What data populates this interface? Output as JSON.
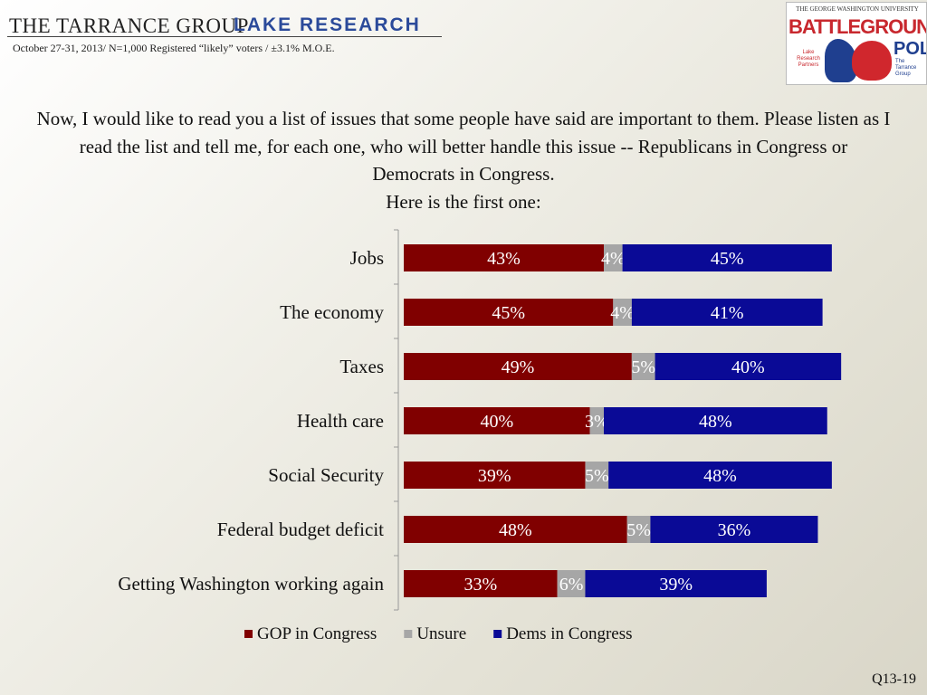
{
  "header": {
    "tarrance": "THE TARRANCE GROUP",
    "lake": "LAKE RESEARCH",
    "survey_info": "October 27-31, 2013/ N=1,000 Registered “likely” voters / ±3.1% M.O.E."
  },
  "poll_logo": {
    "university": "THE GEORGE WASHINGTON UNIVERSITY",
    "battleground": "BATTLEGROUND",
    "poll": "POLL",
    "lake_partners": "Lake Research Partners",
    "tarrance_group": "The Tarrance Group"
  },
  "question": {
    "line1": "Now, I would like to read you a list of issues that some people have said are important to them.  Please listen as I read the list and tell me, for each one, who will better handle this issue -- Republicans in Congress or Democrats in Congress.",
    "line2": "Here is the first one:"
  },
  "footer": {
    "code": "Q13-19"
  },
  "chart_data": {
    "type": "bar",
    "orientation": "horizontal",
    "stacked": true,
    "categories": [
      "Jobs",
      "The economy",
      "Taxes",
      "Health care",
      "Social Security",
      "Federal budget deficit",
      "Getting Washington working again"
    ],
    "series": [
      {
        "name": "GOP in Congress",
        "color": "#800000",
        "values": [
          43,
          45,
          49,
          40,
          39,
          48,
          33
        ]
      },
      {
        "name": "Unsure",
        "color": "#a6a6a6",
        "values": [
          4,
          4,
          5,
          3,
          5,
          5,
          6
        ]
      },
      {
        "name": "Dems in Congress",
        "color": "#0a0a96",
        "values": [
          45,
          41,
          40,
          48,
          48,
          36,
          39
        ]
      }
    ],
    "data_labels": [
      [
        "43%",
        "45%",
        "49%",
        "40%",
        "39%",
        "48%",
        "33%"
      ],
      [
        "4%",
        "4%",
        "5%",
        "3%",
        "5%",
        "5%",
        "6%"
      ],
      [
        "45%",
        "41%",
        "40%",
        "48%",
        "48%",
        "36%",
        "39%"
      ]
    ],
    "xlim": [
      0,
      100
    ],
    "legend_position": "bottom",
    "grid": false
  }
}
